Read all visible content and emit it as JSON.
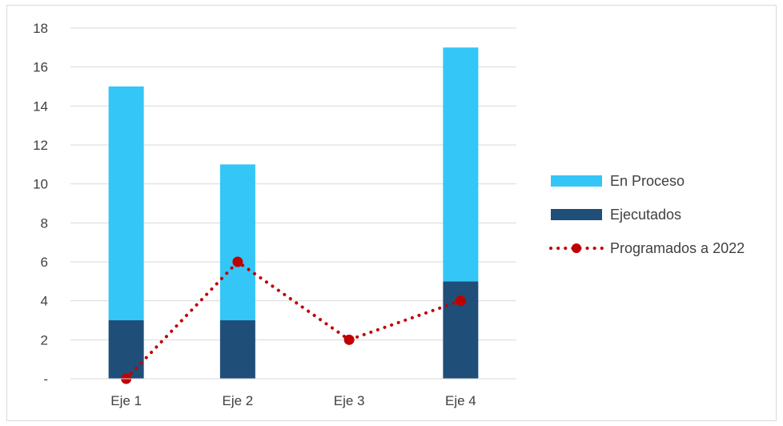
{
  "chart_data": {
    "type": "bar",
    "stacked": true,
    "categories": [
      "Eje 1",
      "Eje 2",
      "Eje 3",
      "Eje 4"
    ],
    "series": [
      {
        "name": "Ejecutados",
        "type": "bar",
        "values": [
          3,
          3,
          0,
          5
        ],
        "color": "#1f4e79"
      },
      {
        "name": "En Proceso",
        "type": "bar",
        "values": [
          12,
          8,
          0,
          12
        ],
        "color": "#33c6f7"
      },
      {
        "name": "Programados a 2022",
        "type": "line",
        "style": "dotted",
        "marker": "circle",
        "values": [
          0,
          6,
          2,
          4
        ],
        "color": "#c00000"
      }
    ],
    "ylim": [
      0,
      18
    ],
    "yticks": [
      0,
      2,
      4,
      6,
      8,
      10,
      12,
      14,
      16,
      18
    ],
    "ytick_labels": [
      "-",
      "2",
      "4",
      "6",
      "8",
      "10",
      "12",
      "14",
      "16",
      "18"
    ],
    "grid": true,
    "legend_position": "right",
    "legend_order": [
      "En Proceso",
      "Ejecutados",
      "Programados a 2022"
    ],
    "title": "",
    "xlabel": "",
    "ylabel": ""
  }
}
